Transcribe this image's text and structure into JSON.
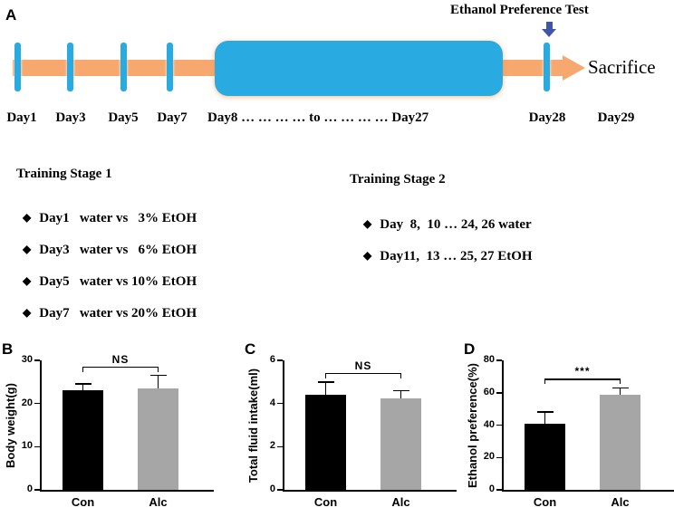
{
  "panelA": {
    "label": "A",
    "ethanol_preference_test": "Ethanol Preference Test",
    "sacrifice": "Sacrifice",
    "timeline_labels": [
      "Day1",
      "Day3",
      "Day5",
      "Day7",
      "Day8 … … … … to … … … … Day27",
      "Day28",
      "Day29"
    ]
  },
  "training_stage_1": {
    "title": "Training Stage 1",
    "bullet": "◆",
    "items": [
      "Day1   water vs   3% EtOH",
      "Day3   water vs   6% EtOH",
      "Day5   water vs 10% EtOH",
      "Day7   water vs 20% EtOH"
    ]
  },
  "training_stage_2": {
    "title": "Training Stage 2",
    "bullet": "◆",
    "items": [
      "Day  8,  10 … 24, 26 water",
      "Day11,  13 … 25, 27 EtOH"
    ]
  },
  "chart_data": [
    {
      "panel": "B",
      "type": "bar",
      "categories": [
        "Con",
        "Alc"
      ],
      "values": [
        23,
        23.5
      ],
      "errors": [
        1.5,
        3
      ],
      "ylabel": "Body weight(g)",
      "xlabel": "",
      "ylim": [
        0,
        30
      ],
      "yticks": [
        0,
        10,
        20,
        30
      ],
      "significance": "NS",
      "bar_colors": [
        "#000000",
        "#A6A6A6"
      ],
      "legend": "none",
      "grid": false
    },
    {
      "panel": "C",
      "type": "bar",
      "categories": [
        "Con",
        "Alc"
      ],
      "values": [
        4.4,
        4.25
      ],
      "errors": [
        0.6,
        0.35
      ],
      "ylabel": "Total fluid intake(ml)",
      "xlabel": "",
      "ylim": [
        0,
        6
      ],
      "yticks": [
        0,
        2,
        4,
        6
      ],
      "significance": "NS",
      "bar_colors": [
        "#000000",
        "#A6A6A6"
      ],
      "legend": "none",
      "grid": false
    },
    {
      "panel": "D",
      "type": "bar",
      "categories": [
        "Con",
        "Alc"
      ],
      "values": [
        41,
        59
      ],
      "errors": [
        7,
        4
      ],
      "ylabel": "Ethanol preference(%)",
      "xlabel": "",
      "ylim": [
        0,
        80
      ],
      "yticks": [
        0,
        20,
        40,
        60,
        80
      ],
      "significance": "***",
      "bar_colors": [
        "#000000",
        "#A6A6A6"
      ],
      "legend": "none",
      "grid": false
    }
  ],
  "colors": {
    "timeline_orange": "#F6A86E",
    "stage2_block_blue": "#29ABE2",
    "tick_blue": "#29ABE2",
    "pointer_arrow_blue": "#3F55A7",
    "bar_black": "#000000",
    "bar_gray": "#A6A6A6"
  }
}
